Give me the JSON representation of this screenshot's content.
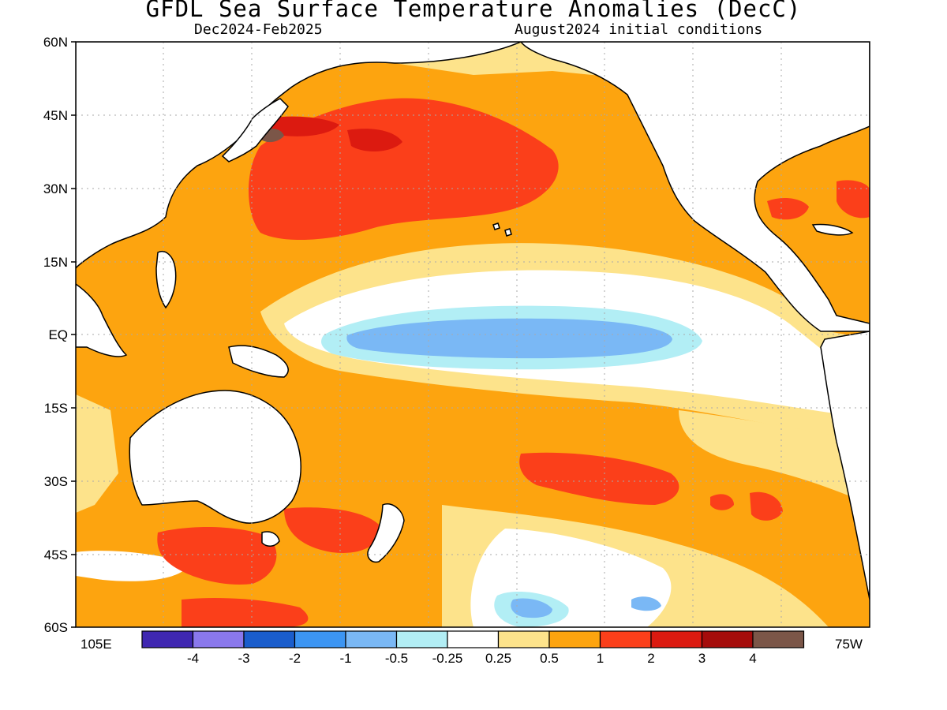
{
  "title": "GFDL Sea Surface Temperature Anomalies (DecC)",
  "subtitle_left": "Dec2024-Feb2025",
  "subtitle_right": "August2024 initial conditions",
  "lat_labels": [
    "60N",
    "45N",
    "30N",
    "15N",
    "EQ",
    "15S",
    "30S",
    "45S",
    "60S"
  ],
  "lon_label_left": "105E",
  "lon_label_right": "75W",
  "colorbar": {
    "colors": [
      "#3f27b1",
      "#8a78ec",
      "#1a5dcc",
      "#3c95f2",
      "#7ab8f5",
      "#b2eef5",
      "#ffffff",
      "#fde38b",
      "#fda40f",
      "#fb3f1a",
      "#dc1a10",
      "#a50c0b",
      "#7b5648"
    ],
    "labels": [
      "-4",
      "-3",
      "-2",
      "-1",
      "-0.5",
      "-0.25",
      "0.25",
      "0.5",
      "1",
      "2",
      "3",
      "4"
    ]
  },
  "palette": {
    "land": "#ffffff",
    "n05": "#7ab8f5",
    "n025": "#b2eef5",
    "p025": "#fde38b",
    "p05": "#fda40f",
    "p1": "#fb3f1a",
    "p2": "#dc1a10",
    "p3": "#a50c0b",
    "p4": "#7b5648"
  }
}
